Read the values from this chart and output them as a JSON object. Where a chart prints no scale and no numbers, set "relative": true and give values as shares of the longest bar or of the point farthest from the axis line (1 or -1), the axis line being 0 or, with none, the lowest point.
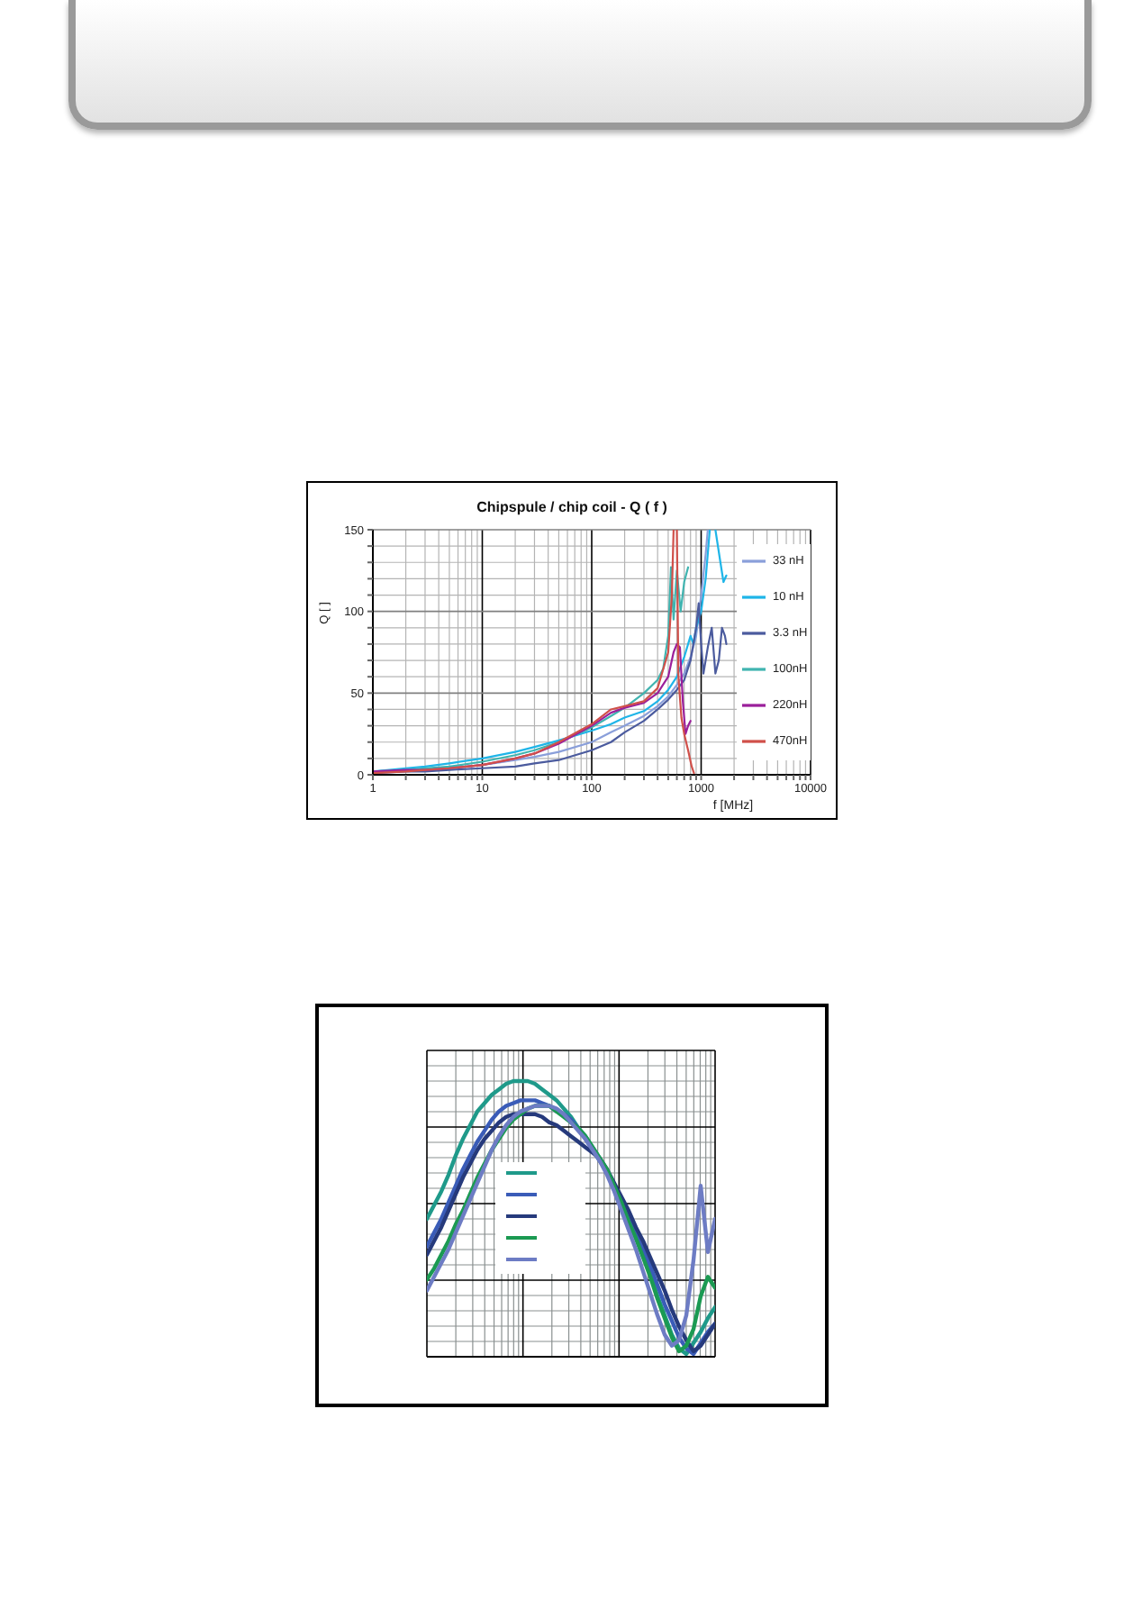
{
  "chart_data": [
    {
      "type": "line",
      "title": "Chipspule / chip coil - Q ( f )",
      "xlabel": "f [MHz]",
      "ylabel": "Q [ ]",
      "log": "x",
      "xlim": [
        1,
        10000
      ],
      "xticks": [
        1,
        {
          "value": 2,
          "label": null
        },
        {
          "value": 3,
          "label": null
        },
        {
          "value": 4,
          "label": null
        },
        {
          "value": 5,
          "label": null
        },
        {
          "value": 6,
          "label": null
        },
        {
          "value": 7,
          "label": null
        },
        {
          "value": 8,
          "label": null
        },
        {
          "value": 9,
          "label": null
        },
        10,
        {
          "value": 20,
          "label": null
        },
        {
          "value": 30,
          "label": null
        },
        {
          "value": 40,
          "label": null
        },
        {
          "value": 50,
          "label": null
        },
        {
          "value": 60,
          "label": null
        },
        {
          "value": 70,
          "label": null
        },
        {
          "value": 80,
          "label": null
        },
        {
          "value": 90,
          "label": null
        },
        100,
        {
          "value": 200,
          "label": null
        },
        {
          "value": 300,
          "label": null
        },
        {
          "value": 400,
          "label": null
        },
        {
          "value": 500,
          "label": null
        },
        {
          "value": 600,
          "label": null
        },
        {
          "value": 700,
          "label": null
        },
        {
          "value": 800,
          "label": null
        },
        {
          "value": 900,
          "label": null
        },
        1000,
        {
          "value": 2000,
          "label": null
        },
        {
          "value": 3000,
          "label": null
        },
        {
          "value": 4000,
          "label": null
        },
        {
          "value": 5000,
          "label": null
        },
        {
          "value": 6000,
          "label": null
        },
        {
          "value": 7000,
          "label": null
        },
        {
          "value": 8000,
          "label": null
        },
        {
          "value": 9000,
          "label": null
        },
        10000
      ],
      "ylim": [
        0,
        150
      ],
      "yticks": [
        0,
        {
          "value": 10,
          "label": null
        },
        {
          "value": 20,
          "label": null
        },
        {
          "value": 30,
          "label": null
        },
        {
          "value": 40,
          "label": null
        },
        50,
        {
          "value": 60,
          "label": null
        },
        {
          "value": 70,
          "label": null
        },
        {
          "value": 80,
          "label": null
        },
        {
          "value": 90,
          "label": null
        },
        100,
        {
          "value": 110,
          "label": null
        },
        {
          "value": 120,
          "label": null
        },
        {
          "value": 130,
          "label": null
        },
        {
          "value": 140,
          "label": null
        },
        150
      ],
      "grid": true,
      "legend": "right",
      "series": [
        {
          "name": "33 nH",
          "color": "#8a9fda",
          "x": [
            1,
            2,
            3,
            5,
            10,
            20,
            30,
            50,
            100,
            150,
            200,
            300,
            400,
            500,
            600,
            700,
            800,
            900,
            1000,
            1100,
            1150
          ],
          "values": [
            2,
            3,
            3,
            4,
            6,
            9,
            11,
            14,
            20,
            26,
            30,
            36,
            42,
            48,
            55,
            62,
            72,
            85,
            110,
            135,
            150
          ]
        },
        {
          "name": "10 nH",
          "color": "#1fb5e8",
          "x": [
            1,
            2,
            3,
            5,
            10,
            20,
            30,
            50,
            100,
            150,
            200,
            300,
            400,
            500,
            600,
            700,
            800,
            850,
            900,
            1000,
            1100,
            1200,
            1275,
            1350,
            1500,
            1600,
            1700
          ],
          "values": [
            2,
            4,
            5,
            7,
            10,
            14,
            17,
            21,
            27,
            31,
            35,
            39,
            45,
            52,
            60,
            72,
            85,
            80,
            90,
            100,
            120,
            150,
            null,
            150,
            130,
            118,
            122
          ]
        },
        {
          "name": "3.3 nH",
          "color": "#4b5b9e",
          "x": [
            1,
            2,
            3,
            5,
            10,
            20,
            30,
            50,
            100,
            150,
            200,
            300,
            400,
            500,
            600,
            700,
            800,
            900,
            950,
            1000,
            1050,
            1150,
            1250,
            1350,
            1450,
            1550,
            1650,
            1700
          ],
          "values": [
            1,
            2,
            2,
            3,
            4,
            5,
            7,
            9,
            15,
            20,
            26,
            33,
            40,
            46,
            52,
            58,
            70,
            90,
            105,
            80,
            62,
            78,
            90,
            62,
            70,
            90,
            85,
            80
          ]
        },
        {
          "name": "100nH",
          "color": "#40b4b0",
          "x": [
            1,
            2,
            3,
            5,
            10,
            20,
            30,
            50,
            100,
            150,
            200,
            300,
            400,
            450,
            500,
            530,
            560,
            600,
            650,
            700,
            760
          ],
          "values": [
            2,
            3,
            4,
            5,
            8,
            12,
            15,
            20,
            29,
            36,
            41,
            50,
            58,
            65,
            85,
            127,
            95,
            125,
            100,
            118,
            127
          ]
        },
        {
          "name": "220nH",
          "color": "#9b1f9b",
          "x": [
            1,
            2,
            3,
            5,
            10,
            20,
            30,
            50,
            100,
            150,
            200,
            300,
            400,
            500,
            560,
            600,
            640,
            680,
            720,
            760,
            800
          ],
          "values": [
            2,
            3,
            3,
            4,
            6,
            10,
            13,
            19,
            30,
            38,
            41,
            44,
            50,
            60,
            75,
            80,
            78,
            45,
            25,
            30,
            33
          ]
        },
        {
          "name": "470nH",
          "color": "#d0504a",
          "x": [
            1,
            2,
            3,
            5,
            10,
            20,
            30,
            50,
            100,
            150,
            200,
            300,
            400,
            500,
            540,
            560,
            580,
            600,
            620,
            660,
            700,
            760,
            820,
            860
          ],
          "values": [
            1,
            2,
            3,
            4,
            6,
            10,
            13,
            20,
            31,
            40,
            42,
            45,
            53,
            75,
            110,
            150,
            null,
            150,
            60,
            35,
            25,
            15,
            5,
            1
          ]
        }
      ]
    },
    {
      "type": "line",
      "relative": true,
      "grid": true,
      "tick_labels": false,
      "categories": [
        null,
        null,
        null,
        null,
        null,
        null,
        null,
        null,
        null,
        null,
        null,
        null,
        null,
        null,
        null,
        null,
        null,
        null,
        null,
        null,
        null,
        null,
        null,
        null,
        null,
        null,
        null,
        null,
        null,
        null,
        null,
        null,
        null,
        null,
        null,
        null,
        null,
        null,
        null,
        null,
        null
      ],
      "series": [
        {
          "color": "#1f9a8a",
          "values": [
            0.5,
            0.55,
            0.6,
            0.66,
            0.73,
            0.79,
            0.84,
            0.89,
            0.92,
            0.95,
            0.97,
            0.99,
            1.0,
            1.0,
            1.0,
            0.99,
            0.97,
            0.95,
            0.93,
            0.9,
            0.87,
            0.83,
            0.8,
            0.76,
            0.72,
            0.67,
            0.61,
            0.55,
            0.49,
            0.43,
            0.37,
            0.3,
            0.22,
            0.15,
            0.08,
            0.03,
            0.01,
            0.05,
            0.09,
            0.14,
            0.18
          ]
        },
        {
          "color": "#3a5cb8",
          "values": [
            0.4,
            0.45,
            0.5,
            0.56,
            0.62,
            0.68,
            0.73,
            0.78,
            0.82,
            0.86,
            0.89,
            0.91,
            0.92,
            0.93,
            0.93,
            0.93,
            0.92,
            0.91,
            0.89,
            0.88,
            0.86,
            0.83,
            0.79,
            0.75,
            0.71,
            0.67,
            0.62,
            0.57,
            0.51,
            0.45,
            0.39,
            0.33,
            0.26,
            0.19,
            0.13,
            0.07,
            0.03,
            0.01,
            0.05,
            0.09,
            0.12
          ]
        },
        {
          "color": "#263a7c",
          "values": [
            0.37,
            0.42,
            0.47,
            0.53,
            0.59,
            0.65,
            0.7,
            0.75,
            0.79,
            0.82,
            0.85,
            0.87,
            0.88,
            0.88,
            0.88,
            0.88,
            0.87,
            0.85,
            0.84,
            0.82,
            0.8,
            0.78,
            0.76,
            0.74,
            0.72,
            0.68,
            0.63,
            0.58,
            0.53,
            0.47,
            0.42,
            0.36,
            0.3,
            0.24,
            0.17,
            0.11,
            0.06,
            0.02,
            0.04,
            0.08,
            0.12
          ]
        },
        {
          "color": "#1b9a52",
          "values": [
            0.28,
            0.32,
            0.37,
            0.42,
            0.48,
            0.53,
            0.59,
            0.65,
            0.7,
            0.75,
            0.79,
            0.83,
            0.86,
            0.88,
            0.9,
            0.91,
            0.91,
            0.91,
            0.89,
            0.87,
            0.85,
            0.83,
            0.8,
            0.76,
            0.72,
            0.68,
            0.62,
            0.56,
            0.49,
            0.43,
            0.36,
            0.29,
            0.21,
            0.14,
            0.07,
            0.02,
            0.04,
            0.1,
            0.22,
            0.29,
            0.25
          ]
        },
        {
          "color": "#6d7cc4",
          "values": [
            0.24,
            0.29,
            0.34,
            0.39,
            0.45,
            0.51,
            0.57,
            0.63,
            0.69,
            0.75,
            0.8,
            0.84,
            0.87,
            0.89,
            0.9,
            0.91,
            0.91,
            0.91,
            0.9,
            0.88,
            0.85,
            0.82,
            0.79,
            0.75,
            0.71,
            0.66,
            0.6,
            0.53,
            0.46,
            0.39,
            0.31,
            0.23,
            0.15,
            0.08,
            0.04,
            0.06,
            0.15,
            0.35,
            0.62,
            0.38,
            0.5
          ]
        }
      ]
    }
  ]
}
